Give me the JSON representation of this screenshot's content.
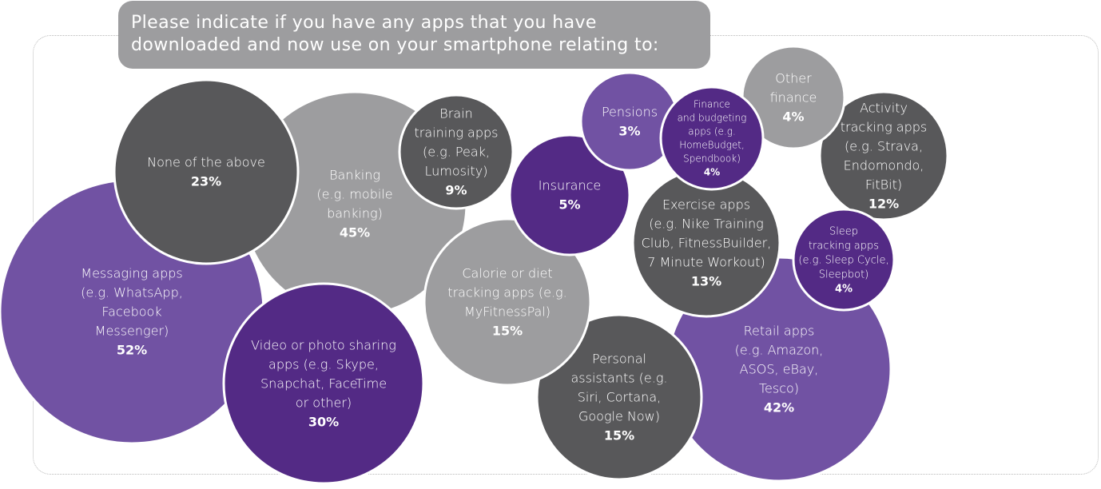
{
  "title": "Please indicate if you have any apps that you have downloaded and now use on your smartphone relating to:",
  "colors": {
    "dark_grey": "#58585a",
    "light_grey": "#9d9d9f",
    "light_purple": "#7152a3",
    "dark_purple": "#532a85",
    "title_bg": "#9d9d9f",
    "stroke": "#ffffff"
  },
  "chart_data": {
    "type": "bubble",
    "title": "Please indicate if you have any apps that you have downloaded and now use on your smartphone relating to:",
    "items": [
      {
        "label_lines": [
          "Messaging apps",
          "(e.g. WhatsApp,",
          "Facebook",
          "Messenger)"
        ],
        "value": 52,
        "value_label": "52%",
        "color": "light_purple"
      },
      {
        "label_lines": [
          "Banking",
          "(e.g. mobile",
          "banking)"
        ],
        "value": 45,
        "value_label": "45%",
        "color": "light_grey"
      },
      {
        "label_lines": [
          "Retail apps",
          "(e.g. Amazon,",
          "ASOS, eBay,",
          "Tesco)"
        ],
        "value": 42,
        "value_label": "42%",
        "color": "light_purple"
      },
      {
        "label_lines": [
          "Video or photo sharing",
          "apps (e.g. Skype,",
          "Snapchat, FaceTime",
          "or other)"
        ],
        "value": 30,
        "value_label": "30%",
        "color": "dark_purple"
      },
      {
        "label_lines": [
          "None of the above"
        ],
        "value": 23,
        "value_label": "23%",
        "color": "dark_grey"
      },
      {
        "label_lines": [
          "Personal",
          "assistants (e.g.",
          "Siri, Cortana,",
          "Google Now)"
        ],
        "value": 15,
        "value_label": "15%",
        "color": "dark_grey"
      },
      {
        "label_lines": [
          "Calorie or diet",
          "tracking apps (e.g.",
          "MyFitnessPal)"
        ],
        "value": 15,
        "value_label": "15%",
        "color": "light_grey"
      },
      {
        "label_lines": [
          "Exercise apps",
          "(e.g. Nike Training",
          "Club, FitnessBuilder,",
          "7 Minute Workout)"
        ],
        "value": 13,
        "value_label": "13%",
        "color": "dark_grey"
      },
      {
        "label_lines": [
          "Activity",
          "tracking apps",
          "(e.g. Strava,",
          "Endomondo,",
          "FitBit)"
        ],
        "value": 12,
        "value_label": "12%",
        "color": "dark_grey"
      },
      {
        "label_lines": [
          "Brain",
          "training apps",
          "(e.g. Peak,",
          "Lumosity)"
        ],
        "value": 9,
        "value_label": "9%",
        "color": "dark_grey"
      },
      {
        "label_lines": [
          "Insurance"
        ],
        "value": 5,
        "value_label": "5%",
        "color": "dark_purple"
      },
      {
        "label_lines": [
          "Other",
          "finance"
        ],
        "value": 4,
        "value_label": "4%",
        "color": "light_grey"
      },
      {
        "label_lines": [
          "Sleep",
          "tracking apps",
          "(e.g. Sleep Cycle,",
          "Sleepbot)"
        ],
        "value": 4,
        "value_label": "4%",
        "color": "dark_purple"
      },
      {
        "label_lines": [
          "Finance",
          "and budgeting",
          "apps (e.g.",
          "HomeBudget,",
          "Spendbook)"
        ],
        "value": 4,
        "value_label": "4%",
        "color": "dark_purple"
      },
      {
        "label_lines": [
          "Pensions"
        ],
        "value": 3,
        "value_label": "3%",
        "color": "light_purple"
      }
    ]
  }
}
